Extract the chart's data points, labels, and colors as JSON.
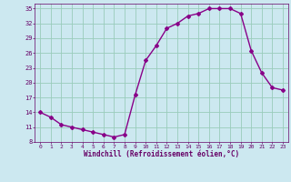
{
  "x": [
    0,
    1,
    2,
    3,
    4,
    5,
    6,
    7,
    8,
    9,
    10,
    11,
    12,
    13,
    14,
    15,
    16,
    17,
    18,
    19,
    20,
    21,
    22,
    23
  ],
  "y": [
    14.0,
    13.0,
    11.5,
    11.0,
    10.5,
    10.0,
    9.5,
    9.0,
    9.5,
    17.5,
    24.5,
    27.5,
    31.0,
    32.0,
    33.5,
    34.0,
    35.0,
    35.0,
    35.0,
    34.0,
    26.5,
    22.0,
    19.0,
    18.5
  ],
  "line_color": "#880088",
  "marker": "D",
  "marker_size": 2.0,
  "bg_color": "#cce8f0",
  "grid_color": "#99ccbb",
  "xlabel": "Windchill (Refroidissement éolien,°C)",
  "xlabel_color": "#660066",
  "tick_color": "#660066",
  "ylim": [
    8,
    36
  ],
  "xlim": [
    -0.5,
    23.5
  ],
  "yticks": [
    8,
    11,
    14,
    17,
    20,
    23,
    26,
    29,
    32,
    35
  ],
  "xticks": [
    0,
    1,
    2,
    3,
    4,
    5,
    6,
    7,
    8,
    9,
    10,
    11,
    12,
    13,
    14,
    15,
    16,
    17,
    18,
    19,
    20,
    21,
    22,
    23
  ]
}
